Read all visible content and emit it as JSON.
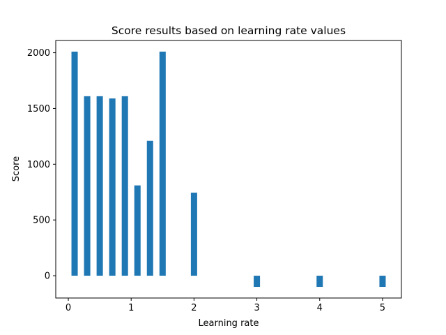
{
  "chart_data": {
    "type": "bar",
    "title": "Score results based on learning rate values",
    "xlabel": "Learning rate",
    "ylabel": "Score",
    "x": [
      0.1,
      0.3,
      0.5,
      0.7,
      0.9,
      1.1,
      1.3,
      1.5,
      2,
      3,
      4,
      5
    ],
    "values": [
      2010,
      1610,
      1610,
      1590,
      1610,
      810,
      1210,
      2010,
      745,
      -100,
      -100,
      -100
    ],
    "xlim": [
      -0.2,
      5.3
    ],
    "ylim": [
      -200,
      2110
    ],
    "xticks": [
      0,
      1,
      2,
      3,
      4,
      5
    ],
    "yticks": [
      0,
      500,
      1000,
      1500,
      2000
    ],
    "bar_width": 0.1,
    "grid": false,
    "bar_color": "#1f77b4"
  }
}
